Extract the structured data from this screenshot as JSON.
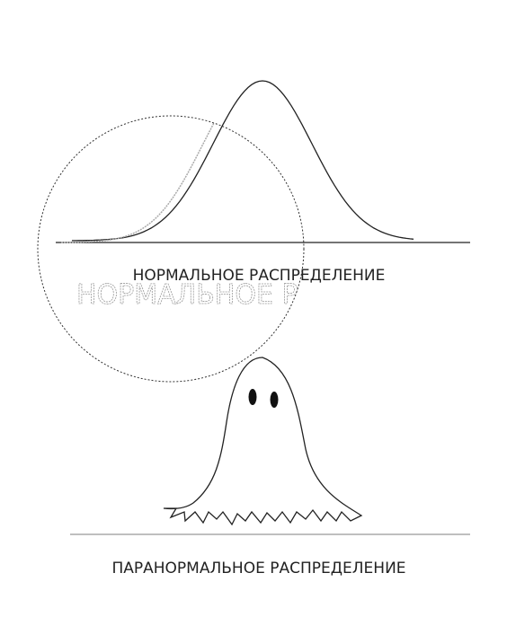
{
  "normal": {
    "label": "НОРМАЛЬНОЕ РАСПРЕДЕЛЕНИЕ"
  },
  "paranormal": {
    "label": "ПАРАНОРМАЛЬНОЕ РАСПРЕДЕЛЕНИЕ"
  }
}
